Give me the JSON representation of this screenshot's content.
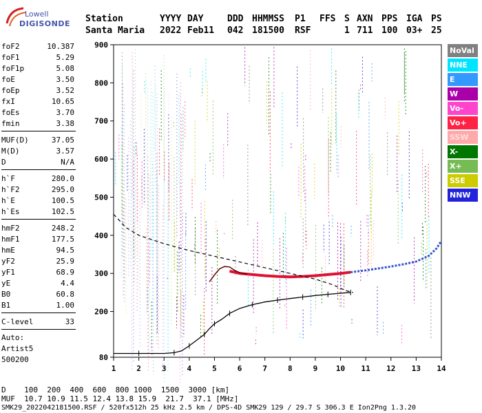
{
  "logo": {
    "brand": "Lowell",
    "name": "DIGISONDE"
  },
  "header": {
    "labels": [
      "Station",
      "YYYY",
      "DAY",
      "DDD",
      "HHMMSS",
      "P1",
      "FFS",
      "S",
      "AXN",
      "PPS",
      "IGA",
      "PS"
    ],
    "values": [
      "Santa Maria",
      "2022",
      "Feb11",
      "042",
      "181500",
      "RSF",
      "1",
      "711",
      "100",
      "03+",
      "25"
    ]
  },
  "params": [
    {
      "name": "foF2",
      "value": "10.387"
    },
    {
      "name": "foF1",
      "value": "5.29"
    },
    {
      "name": "foF1p",
      "value": "5.08"
    },
    {
      "name": "foE",
      "value": "3.50"
    },
    {
      "name": "foEp",
      "value": "3.52"
    },
    {
      "name": "fxI",
      "value": "10.65"
    },
    {
      "name": "foEs",
      "value": "3.70"
    },
    {
      "name": "fmin",
      "value": "3.38"
    },
    {
      "name": "MUF(D)",
      "value": "37.05"
    },
    {
      "name": "M(D)",
      "value": "3.57"
    },
    {
      "name": "D",
      "value": "N/A"
    },
    {
      "name": "h`F",
      "value": "280.0"
    },
    {
      "name": "h`F2",
      "value": "295.0"
    },
    {
      "name": "h`E",
      "value": "100.5"
    },
    {
      "name": "h`Es",
      "value": "102.5"
    },
    {
      "name": "hmF2",
      "value": "248.2"
    },
    {
      "name": "hmF1",
      "value": "177.5"
    },
    {
      "name": "hmE",
      "value": "94.5"
    },
    {
      "name": "yF2",
      "value": "25.9"
    },
    {
      "name": "yF1",
      "value": "68.9"
    },
    {
      "name": "yE",
      "value": "4.4"
    },
    {
      "name": "B0",
      "value": "60.8"
    },
    {
      "name": "B1",
      "value": "1.00"
    },
    {
      "name": "C-level",
      "value": "33"
    }
  ],
  "auto": {
    "label": "Auto:",
    "artist": "Artist5",
    "version": "500200"
  },
  "legend": [
    {
      "label": "NoVal",
      "color": "#808080"
    },
    {
      "label": "NNE",
      "color": "#00e5ff"
    },
    {
      "label": "E",
      "color": "#3399ff"
    },
    {
      "label": "W",
      "color": "#aa00aa"
    },
    {
      "label": "Vo-",
      "color": "#ff44cc"
    },
    {
      "label": "Vo+",
      "color": "#ff2244"
    },
    {
      "label": "SSW",
      "color": "#ffaaaa"
    },
    {
      "label": "X-",
      "color": "#007700"
    },
    {
      "label": "X+",
      "color": "#77bb55"
    },
    {
      "label": "SSE",
      "color": "#cccc00"
    },
    {
      "label": "NNW",
      "color": "#2222dd"
    }
  ],
  "chart_data": {
    "type": "scatter",
    "x_ticks": [
      "1",
      "2",
      "3",
      "4",
      "5",
      "6",
      "7",
      "8",
      "9",
      "10",
      "11",
      "12",
      "13",
      "14"
    ],
    "y_ticks": [
      "900",
      "800",
      "700",
      "600",
      "500",
      "400",
      "300",
      "200",
      "80"
    ],
    "xlim": [
      1,
      14
    ],
    "ylim": [
      80,
      900
    ],
    "series": [
      {
        "style": "trace-red",
        "points": [
          [
            5.6,
            306
          ],
          [
            6,
            300
          ],
          [
            6.5,
            297
          ],
          [
            7,
            294
          ],
          [
            7.5,
            292
          ],
          [
            8,
            291
          ],
          [
            8.5,
            292
          ],
          [
            9,
            294
          ],
          [
            9.5,
            297
          ],
          [
            10,
            300
          ],
          [
            10.4,
            303
          ]
        ]
      },
      {
        "style": "trace-far",
        "points": [
          [
            10.4,
            303
          ],
          [
            11,
            308
          ],
          [
            11.5,
            313
          ],
          [
            12,
            318
          ],
          [
            12.5,
            324
          ],
          [
            13,
            331
          ],
          [
            13.5,
            346
          ],
          [
            13.8,
            365
          ],
          [
            14,
            385
          ]
        ]
      },
      {
        "style": "solid-virtual",
        "points": [
          [
            4.8,
            278
          ],
          [
            5,
            296
          ],
          [
            5.2,
            312
          ],
          [
            5.4,
            318
          ],
          [
            5.6,
            317
          ],
          [
            5.8,
            308
          ],
          [
            6,
            302
          ],
          [
            6.3,
            298
          ]
        ]
      },
      {
        "style": "dashed-model",
        "points": [
          [
            1,
            455
          ],
          [
            1.5,
            420
          ],
          [
            2,
            400
          ],
          [
            3,
            378
          ],
          [
            4,
            360
          ],
          [
            5,
            345
          ],
          [
            6,
            330
          ],
          [
            7,
            315
          ],
          [
            8,
            300
          ],
          [
            9,
            285
          ],
          [
            9.7,
            270
          ],
          [
            10.2,
            255
          ],
          [
            10.5,
            250
          ]
        ]
      },
      {
        "style": "profile",
        "points": [
          [
            1,
            90
          ],
          [
            2,
            90
          ],
          [
            3,
            90
          ],
          [
            3.4,
            92
          ],
          [
            3.7,
            97
          ],
          [
            4,
            110
          ],
          [
            4.3,
            125
          ],
          [
            4.6,
            140
          ],
          [
            4.8,
            155
          ],
          [
            5,
            168
          ],
          [
            5.3,
            180
          ],
          [
            5.6,
            195
          ],
          [
            6,
            208
          ],
          [
            6.5,
            218
          ],
          [
            7,
            225
          ],
          [
            7.5,
            230
          ],
          [
            8,
            234
          ],
          [
            8.5,
            238
          ],
          [
            9,
            242
          ],
          [
            9.5,
            245
          ],
          [
            10,
            248
          ],
          [
            10.4,
            250
          ]
        ]
      }
    ]
  },
  "footer": {
    "line1": "D    100  200  400  600  800 1000  1500  3000 [km]",
    "line2": "MUF  10.7 10.9 11.5 12.4 13.8 15.9  21.7  37.1 [MHz]",
    "line3": "SMK29_2022042181500.RSF / 520fx512h 25 kHz 2.5 km / DPS-4D SMK29 129 / 29.7 S 306.3 E Ion2Png 1.3.20"
  }
}
